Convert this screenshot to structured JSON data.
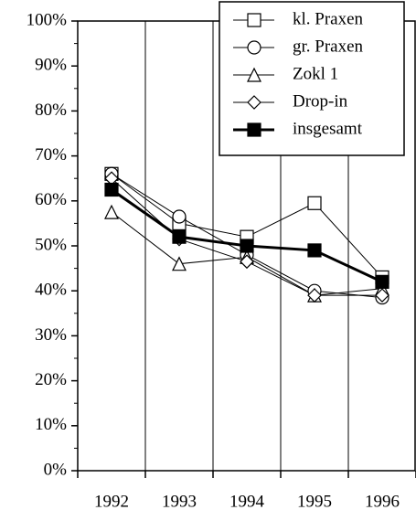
{
  "chart_data": {
    "type": "line",
    "categories": [
      "1992",
      "1993",
      "1994",
      "1995",
      "1996"
    ],
    "series": [
      {
        "name": "kl. Praxen",
        "color": "#000000",
        "marker": "square",
        "values": [
          66,
          55,
          52,
          59.5,
          43
        ]
      },
      {
        "name": "gr. Praxen",
        "color": "#000000",
        "marker": "circle",
        "values": [
          66,
          56.5,
          48,
          40,
          38.5
        ]
      },
      {
        "name": "Zokl 1",
        "color": "#000000",
        "marker": "triangle",
        "values": [
          57.5,
          46,
          47.5,
          39,
          40.5
        ]
      },
      {
        "name": "Drop-in",
        "color": "#000000",
        "marker": "diamond",
        "values": [
          65,
          51.5,
          46.5,
          39,
          39
        ]
      },
      {
        "name": "insgesamt",
        "color": "#000000",
        "marker": "filled-square",
        "bold": true,
        "values": [
          62.5,
          52,
          50,
          49,
          42
        ]
      }
    ],
    "ylim": [
      0,
      100
    ],
    "yticks": [
      {
        "value": 0,
        "label": "0%"
      },
      {
        "value": 10,
        "label": "10%"
      },
      {
        "value": 20,
        "label": "20%"
      },
      {
        "value": 30,
        "label": "30%"
      },
      {
        "value": 40,
        "label": "40%"
      },
      {
        "value": 50,
        "label": "50%"
      },
      {
        "value": 60,
        "label": "60%"
      },
      {
        "value": 70,
        "label": "70%"
      },
      {
        "value": 80,
        "label": "80%"
      },
      {
        "value": 90,
        "label": "90%"
      },
      {
        "value": 100,
        "label": "100%"
      }
    ],
    "yminorticks": [
      5,
      15,
      25,
      35,
      45,
      55,
      65,
      75,
      85,
      95
    ],
    "grid": "x",
    "legend": "top-right"
  }
}
